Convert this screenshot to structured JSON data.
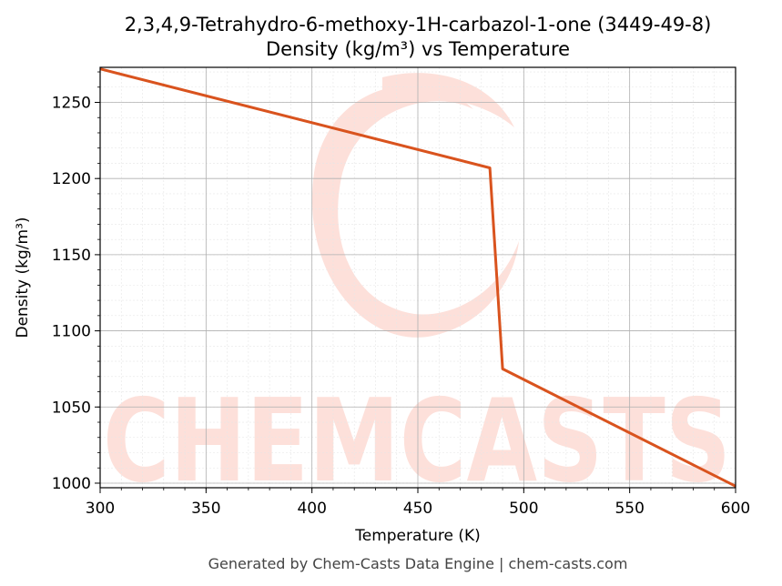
{
  "chart_data": {
    "type": "line",
    "title_line1": "2,3,4,9-Tetrahydro-6-methoxy-1H-carbazol-1-one (3449-49-8)",
    "title_line2": "Density (kg/m³) vs Temperature",
    "xlabel": "Temperature (K)",
    "ylabel": "Density (kg/m³)",
    "xlim": [
      300,
      600
    ],
    "ylim": [
      997,
      1273
    ],
    "x_ticks": [
      300,
      350,
      400,
      450,
      500,
      550,
      600
    ],
    "y_ticks": [
      1000,
      1050,
      1100,
      1150,
      1200,
      1250
    ],
    "grid": true,
    "series": [
      {
        "color": "#d9531e",
        "points": [
          [
            300,
            1272
          ],
          [
            484,
            1207
          ],
          [
            490,
            1075
          ],
          [
            600,
            998
          ]
        ]
      }
    ]
  },
  "watermark": {
    "text": "CHEMCASTS",
    "color": "#fde0da"
  },
  "footer": "Generated by Chem-Casts Data Engine | chem-casts.com"
}
